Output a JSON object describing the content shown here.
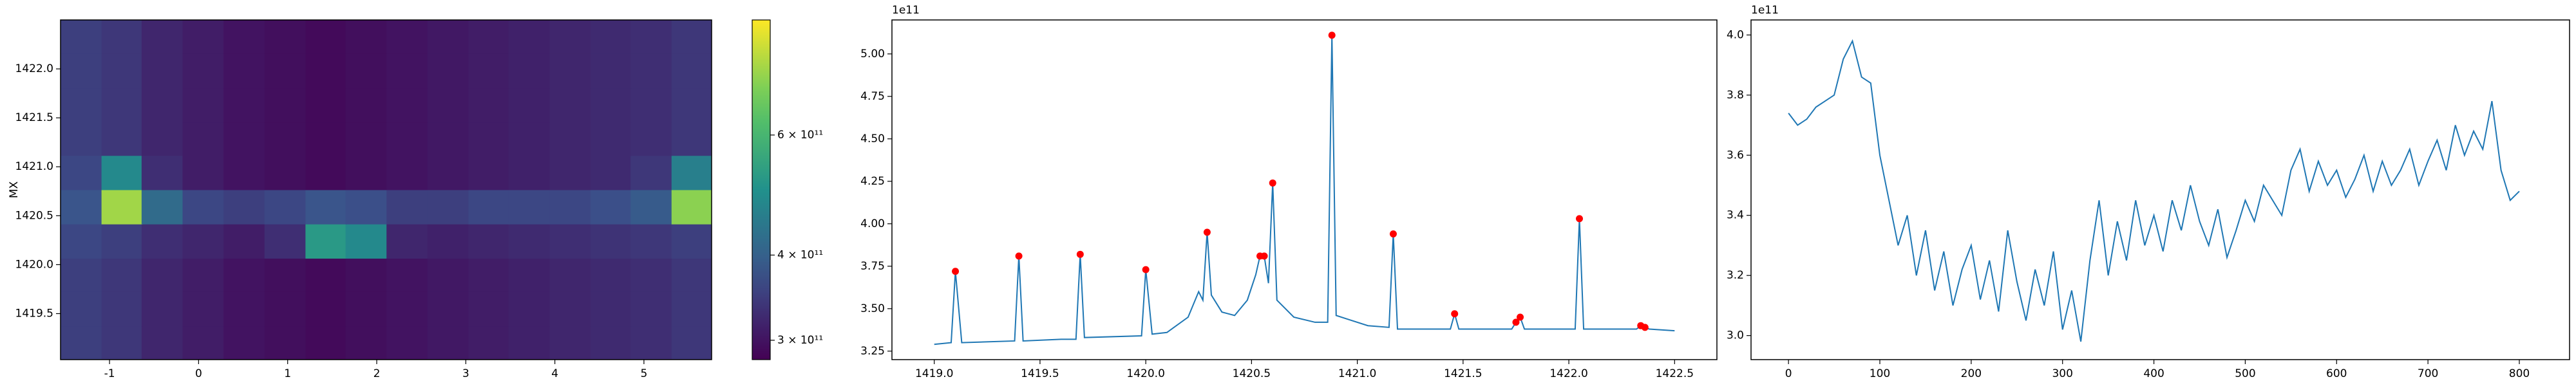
{
  "chart_data": [
    {
      "type": "heatmap",
      "ylabel": "MX",
      "xlim": [
        -1.55,
        5.76
      ],
      "ylim": [
        1419.03,
        1422.5
      ],
      "xticks": [
        -1,
        0,
        1,
        2,
        3,
        4,
        5
      ],
      "yticks": [
        1419.5,
        {
          "value": 1420,
          "label": "1420.0"
        },
        1420.5,
        {
          "value": 1421,
          "label": "1421.0"
        },
        1421.5,
        {
          "value": 1422,
          "label": "1422.0"
        }
      ],
      "colormap": "viridis",
      "colorbar": {
        "scale": "log",
        "lim": [
          281000000000.0,
          885000000000.0
        ],
        "ticks": [
          {
            "value": 300000000000.0,
            "label": "3 × 10¹¹"
          },
          {
            "value": 400000000000.0,
            "label": "4 × 10¹¹"
          },
          {
            "value": 600000000000.0,
            "label": "6 × 10¹¹"
          }
        ]
      },
      "x": [
        -1.32,
        -0.86,
        -0.41,
        0.05,
        0.51,
        0.97,
        1.43,
        1.88,
        2.34,
        2.8,
        3.26,
        3.71,
        4.17,
        4.63,
        5.08,
        5.54
      ],
      "y": [
        1419.2,
        1419.55,
        1419.9,
        1420.24,
        1420.59,
        1420.94,
        1421.29,
        1421.63,
        1421.98,
        1422.33
      ],
      "z": [
        [
          350000000000.0,
          340000000000.0,
          320000000000.0,
          310000000000.0,
          300000000000.0,
          295000000000.0,
          290000000000.0,
          295000000000.0,
          300000000000.0,
          305000000000.0,
          310000000000.0,
          315000000000.0,
          320000000000.0,
          325000000000.0,
          330000000000.0,
          340000000000.0
        ],
        [
          350000000000.0,
          340000000000.0,
          320000000000.0,
          310000000000.0,
          300000000000.0,
          295000000000.0,
          290000000000.0,
          295000000000.0,
          300000000000.0,
          305000000000.0,
          310000000000.0,
          315000000000.0,
          320000000000.0,
          325000000000.0,
          330000000000.0,
          340000000000.0
        ],
        [
          350000000000.0,
          340000000000.0,
          320000000000.0,
          310000000000.0,
          300000000000.0,
          295000000000.0,
          290000000000.0,
          295000000000.0,
          300000000000.0,
          305000000000.0,
          310000000000.0,
          315000000000.0,
          320000000000.0,
          325000000000.0,
          330000000000.0,
          340000000000.0
        ],
        [
          360000000000.0,
          350000000000.0,
          330000000000.0,
          320000000000.0,
          310000000000.0,
          330000000000.0,
          520000000000.0,
          480000000000.0,
          320000000000.0,
          315000000000.0,
          320000000000.0,
          325000000000.0,
          330000000000.0,
          335000000000.0,
          340000000000.0,
          350000000000.0
        ],
        [
          380000000000.0,
          750000000000.0,
          420000000000.0,
          360000000000.0,
          350000000000.0,
          360000000000.0,
          380000000000.0,
          370000000000.0,
          350000000000.0,
          350000000000.0,
          360000000000.0,
          360000000000.0,
          360000000000.0,
          370000000000.0,
          390000000000.0,
          720000000000.0
        ],
        [
          360000000000.0,
          480000000000.0,
          330000000000.0,
          310000000000.0,
          300000000000.0,
          295000000000.0,
          290000000000.0,
          295000000000.0,
          300000000000.0,
          305000000000.0,
          310000000000.0,
          315000000000.0,
          320000000000.0,
          325000000000.0,
          340000000000.0,
          460000000000.0
        ],
        [
          350000000000.0,
          340000000000.0,
          320000000000.0,
          310000000000.0,
          300000000000.0,
          295000000000.0,
          290000000000.0,
          295000000000.0,
          300000000000.0,
          305000000000.0,
          310000000000.0,
          315000000000.0,
          320000000000.0,
          325000000000.0,
          330000000000.0,
          340000000000.0
        ],
        [
          350000000000.0,
          340000000000.0,
          320000000000.0,
          310000000000.0,
          300000000000.0,
          295000000000.0,
          290000000000.0,
          295000000000.0,
          300000000000.0,
          305000000000.0,
          310000000000.0,
          315000000000.0,
          320000000000.0,
          325000000000.0,
          330000000000.0,
          340000000000.0
        ],
        [
          350000000000.0,
          340000000000.0,
          320000000000.0,
          310000000000.0,
          300000000000.0,
          295000000000.0,
          290000000000.0,
          295000000000.0,
          300000000000.0,
          305000000000.0,
          310000000000.0,
          315000000000.0,
          320000000000.0,
          325000000000.0,
          330000000000.0,
          340000000000.0
        ],
        [
          350000000000.0,
          340000000000.0,
          320000000000.0,
          310000000000.0,
          300000000000.0,
          295000000000.0,
          290000000000.0,
          295000000000.0,
          300000000000.0,
          305000000000.0,
          310000000000.0,
          315000000000.0,
          320000000000.0,
          325000000000.0,
          330000000000.0,
          340000000000.0
        ]
      ]
    },
    {
      "type": "line",
      "y_offset_label": "1e11",
      "xlim": [
        1418.8,
        1422.7
      ],
      "ylim": [
        3.2,
        5.2
      ],
      "xticks": [
        {
          "value": 1419,
          "label": "1419.0"
        },
        1419.5,
        {
          "value": 1420,
          "label": "1420.0"
        },
        1420.5,
        {
          "value": 1421,
          "label": "1421.0"
        },
        1421.5,
        {
          "value": 1422,
          "label": "1422.0"
        },
        1422.5
      ],
      "yticks": [
        3.25,
        {
          "value": 3.5,
          "label": "3.50"
        },
        3.75,
        {
          "value": 4,
          "label": "4.00"
        },
        4.25,
        {
          "value": 4.5,
          "label": "4.50"
        },
        4.75,
        {
          "value": 5,
          "label": "5.00"
        }
      ],
      "series": [
        {
          "kind": "line",
          "color": "#1f77b4",
          "x": [
            1419.0,
            1419.08,
            1419.1,
            1419.13,
            1419.38,
            1419.4,
            1419.42,
            1419.6,
            1419.67,
            1419.69,
            1419.71,
            1419.98,
            1420.0,
            1420.03,
            1420.1,
            1420.2,
            1420.25,
            1420.27,
            1420.29,
            1420.31,
            1420.36,
            1420.42,
            1420.48,
            1420.52,
            1420.54,
            1420.56,
            1420.58,
            1420.6,
            1420.62,
            1420.7,
            1420.8,
            1420.86,
            1420.88,
            1420.9,
            1420.95,
            1421.05,
            1421.15,
            1421.17,
            1421.19,
            1421.44,
            1421.46,
            1421.48,
            1421.73,
            1421.75,
            1421.77,
            1421.79,
            1422.03,
            1422.05,
            1422.07,
            1422.32,
            1422.34,
            1422.36,
            1422.38,
            1422.5
          ],
          "values": [
            3.29,
            3.3,
            3.72,
            3.3,
            3.31,
            3.81,
            3.31,
            3.32,
            3.32,
            3.82,
            3.33,
            3.34,
            3.73,
            3.35,
            3.36,
            3.45,
            3.6,
            3.55,
            3.95,
            3.58,
            3.48,
            3.46,
            3.55,
            3.7,
            3.81,
            3.81,
            3.65,
            4.24,
            3.55,
            3.45,
            3.42,
            3.42,
            5.11,
            3.46,
            3.44,
            3.4,
            3.39,
            3.94,
            3.38,
            3.38,
            3.47,
            3.38,
            3.38,
            3.42,
            3.45,
            3.38,
            3.38,
            4.03,
            3.38,
            3.38,
            3.4,
            3.39,
            3.38,
            3.37
          ]
        },
        {
          "kind": "scatter",
          "color": "#ff0000",
          "x": [
            1419.1,
            1419.4,
            1419.69,
            1420.0,
            1420.29,
            1420.54,
            1420.56,
            1420.6,
            1420.88,
            1421.17,
            1421.46,
            1421.75,
            1421.77,
            1422.05,
            1422.34,
            1422.36
          ],
          "values": [
            3.72,
            3.81,
            3.82,
            3.73,
            3.95,
            3.81,
            3.81,
            4.24,
            5.11,
            3.94,
            3.47,
            3.42,
            3.45,
            4.03,
            3.4,
            3.39
          ]
        }
      ]
    },
    {
      "type": "line",
      "y_offset_label": "1e11",
      "xlim": [
        -41,
        855
      ],
      "ylim": [
        2.92,
        4.05
      ],
      "xticks": [
        0,
        100,
        200,
        300,
        400,
        500,
        600,
        700,
        800
      ],
      "yticks": [
        {
          "value": 3,
          "label": "3.0"
        },
        3.2,
        3.4,
        3.6,
        3.8,
        {
          "value": 4,
          "label": "4.0"
        }
      ],
      "series": [
        {
          "kind": "line",
          "color": "#1f77b4",
          "x": [
            0,
            10,
            20,
            30,
            40,
            50,
            60,
            70,
            80,
            90,
            100,
            110,
            120,
            130,
            140,
            150,
            160,
            170,
            180,
            190,
            200,
            210,
            220,
            230,
            240,
            250,
            260,
            270,
            280,
            290,
            300,
            310,
            320,
            330,
            340,
            350,
            360,
            370,
            380,
            390,
            400,
            410,
            420,
            430,
            440,
            450,
            460,
            470,
            480,
            490,
            500,
            510,
            520,
            530,
            540,
            550,
            560,
            570,
            580,
            590,
            600,
            610,
            620,
            630,
            640,
            650,
            660,
            670,
            680,
            690,
            700,
            710,
            720,
            730,
            740,
            750,
            760,
            770,
            780,
            790,
            800
          ],
          "values": [
            3.74,
            3.7,
            3.72,
            3.76,
            3.78,
            3.8,
            3.92,
            3.98,
            3.86,
            3.84,
            3.6,
            3.45,
            3.3,
            3.4,
            3.2,
            3.35,
            3.15,
            3.28,
            3.1,
            3.22,
            3.3,
            3.12,
            3.25,
            3.08,
            3.35,
            3.18,
            3.05,
            3.22,
            3.1,
            3.28,
            3.02,
            3.15,
            2.98,
            3.25,
            3.45,
            3.2,
            3.38,
            3.25,
            3.45,
            3.3,
            3.4,
            3.28,
            3.45,
            3.35,
            3.5,
            3.38,
            3.3,
            3.42,
            3.26,
            3.35,
            3.45,
            3.38,
            3.5,
            3.45,
            3.4,
            3.55,
            3.62,
            3.48,
            3.58,
            3.5,
            3.55,
            3.46,
            3.52,
            3.6,
            3.48,
            3.58,
            3.5,
            3.55,
            3.62,
            3.5,
            3.58,
            3.65,
            3.55,
            3.7,
            3.6,
            3.68,
            3.62,
            3.78,
            3.55,
            3.45,
            3.48
          ]
        }
      ]
    }
  ]
}
